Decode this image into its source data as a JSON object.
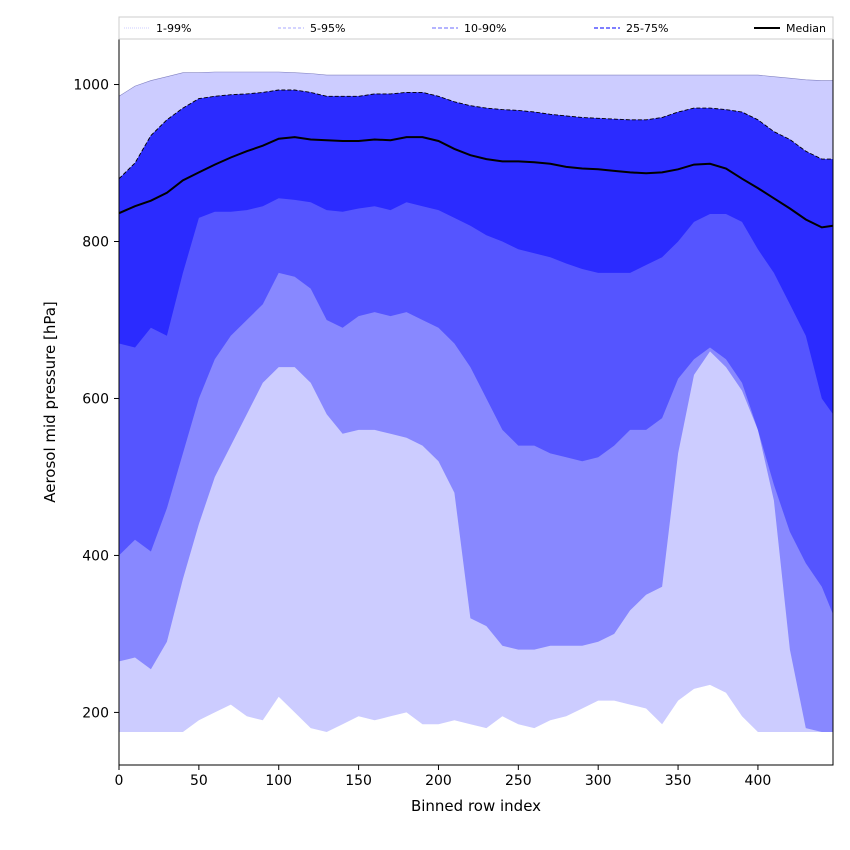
{
  "chart_data": {
    "type": "area",
    "title": "",
    "xlabel": "Binned row index",
    "ylabel": "Aerosol mid pressure [hPa]",
    "xlim": [
      0,
      447
    ],
    "ylim": [
      133,
      1058
    ],
    "xticks": [
      0,
      50,
      100,
      150,
      200,
      250,
      300,
      350,
      400
    ],
    "yticks": [
      200,
      400,
      600,
      800,
      1000
    ],
    "grid": false,
    "legend_position": "top",
    "x": [
      0,
      10,
      20,
      30,
      40,
      50,
      60,
      70,
      80,
      90,
      100,
      110,
      120,
      130,
      140,
      150,
      160,
      170,
      180,
      190,
      200,
      210,
      220,
      230,
      240,
      250,
      260,
      270,
      280,
      290,
      300,
      310,
      320,
      330,
      340,
      350,
      360,
      370,
      380,
      390,
      400,
      410,
      420,
      430,
      440,
      447
    ],
    "series": [
      {
        "name": "Median",
        "style": "solid",
        "color": "#000000",
        "values": [
          836,
          845,
          852,
          862,
          878,
          888,
          898,
          907,
          915,
          922,
          931,
          933,
          930,
          929,
          928,
          928,
          930,
          929,
          933,
          933,
          928,
          918,
          910,
          905,
          902,
          902,
          901,
          899,
          895,
          893,
          892,
          890,
          888,
          887,
          888,
          892,
          898,
          899,
          893,
          880,
          868,
          855,
          842,
          828,
          818,
          820
        ]
      },
      {
        "name": "25-75%",
        "style": "dashed",
        "color": "#5555ff",
        "lower": [
          670,
          665,
          690,
          680,
          760,
          830,
          838,
          838,
          840,
          845,
          855,
          853,
          850,
          840,
          838,
          842,
          845,
          840,
          850,
          845,
          840,
          830,
          820,
          808,
          800,
          790,
          785,
          780,
          772,
          765,
          760,
          760,
          760,
          770,
          780,
          800,
          825,
          835,
          835,
          825,
          790,
          760,
          720,
          680,
          600,
          580
        ],
        "upper": [
          880,
          900,
          935,
          955,
          970,
          982,
          985,
          987,
          988,
          990,
          993,
          993,
          990,
          985,
          985,
          985,
          988,
          988,
          990,
          990,
          985,
          978,
          973,
          970,
          968,
          967,
          965,
          962,
          960,
          958,
          957,
          956,
          955,
          955,
          958,
          965,
          970,
          970,
          968,
          965,
          955,
          940,
          930,
          915,
          905,
          905
        ]
      },
      {
        "name": "10-90%",
        "style": "dashed",
        "color": "#8888ff",
        "lower": [
          400,
          420,
          405,
          460,
          530,
          600,
          650,
          680,
          700,
          720,
          760,
          755,
          740,
          700,
          690,
          705,
          710,
          705,
          710,
          700,
          690,
          670,
          640,
          600,
          560,
          540,
          540,
          530,
          525,
          520,
          525,
          540,
          560,
          560,
          575,
          625,
          650,
          665,
          650,
          620,
          560,
          490,
          430,
          390,
          360,
          325
        ]
      },
      {
        "name": "5-95%",
        "style": "dashed",
        "color": "#aaaaff",
        "lower": [
          265,
          270,
          255,
          290,
          370,
          440,
          500,
          540,
          580,
          620,
          640,
          640,
          620,
          580,
          555,
          560,
          560,
          555,
          550,
          540,
          520,
          480,
          320,
          310,
          285,
          280,
          280,
          285,
          285,
          285,
          290,
          300,
          330,
          350,
          360,
          530,
          630,
          660,
          640,
          610,
          560,
          470,
          280,
          180,
          175,
          175
        ]
      },
      {
        "name": "1-99%",
        "style": "dotted",
        "color": "#ccccff",
        "lower": [
          175,
          175,
          175,
          175,
          175,
          190,
          200,
          210,
          195,
          190,
          220,
          200,
          180,
          175,
          185,
          195,
          190,
          195,
          200,
          185,
          185,
          190,
          185,
          180,
          195,
          185,
          180,
          190,
          195,
          205,
          215,
          215,
          210,
          205,
          185,
          215,
          230,
          235,
          225,
          195,
          175,
          175,
          175,
          175,
          175,
          175
        ],
        "upper": [
          985,
          998,
          1005,
          1010,
          1015,
          1015,
          1016,
          1016,
          1016,
          1016,
          1016,
          1015,
          1014,
          1012,
          1012,
          1012,
          1012,
          1012,
          1012,
          1012,
          1012,
          1012,
          1012,
          1012,
          1012,
          1012,
          1012,
          1012,
          1012,
          1012,
          1012,
          1012,
          1012,
          1012,
          1012,
          1012,
          1012,
          1012,
          1012,
          1012,
          1012,
          1010,
          1008,
          1006,
          1005,
          1005
        ]
      }
    ],
    "band_colors": {
      "1-99%": "#ccccff",
      "5-95%": "#8888ff",
      "10-90%": "#5555ff",
      "25-75%": "#2b2bff"
    }
  }
}
